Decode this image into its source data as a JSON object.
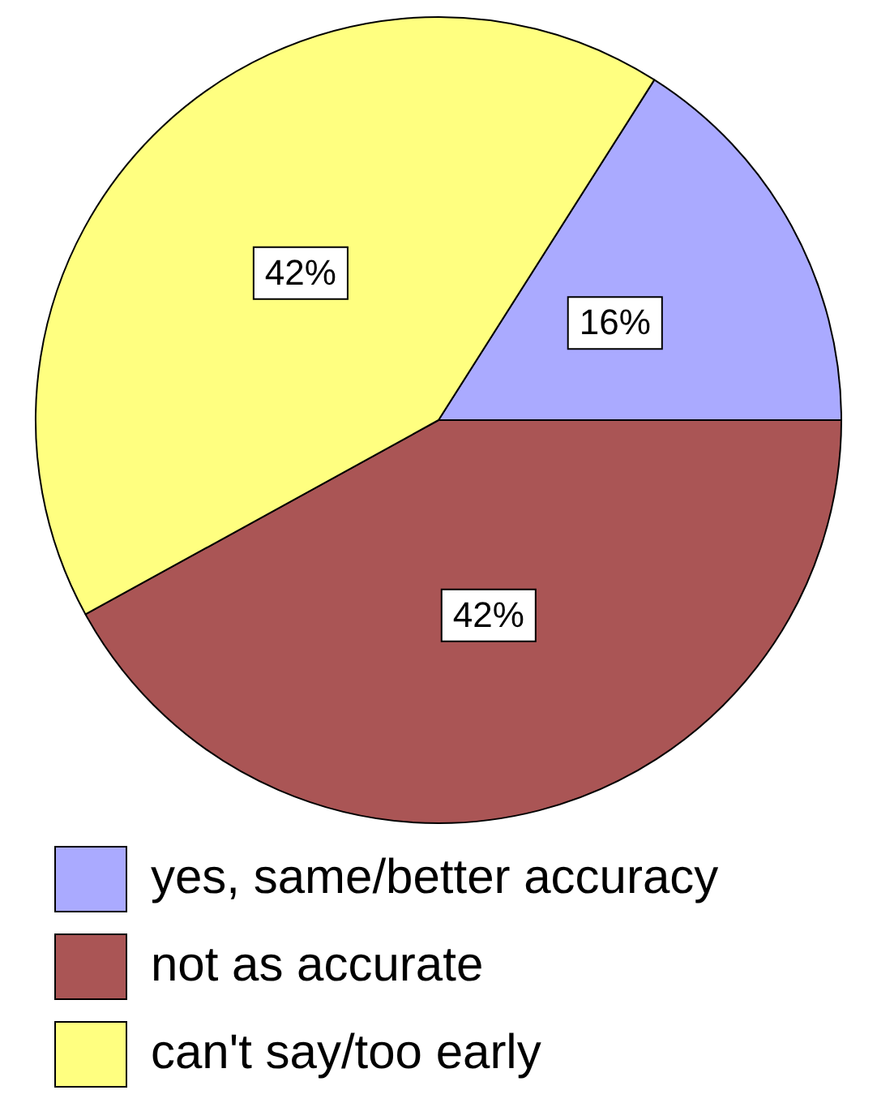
{
  "chart_data": {
    "type": "pie",
    "categories": [
      "yes, same/better accuracy",
      "not as accurate",
      "can't say/too early"
    ],
    "values": [
      16,
      42,
      42
    ],
    "colors": [
      "#aaaaff",
      "#aa5555",
      "#ffff80"
    ],
    "value_labels": [
      "16%",
      "42%",
      "42%"
    ],
    "legend": "bottom"
  }
}
